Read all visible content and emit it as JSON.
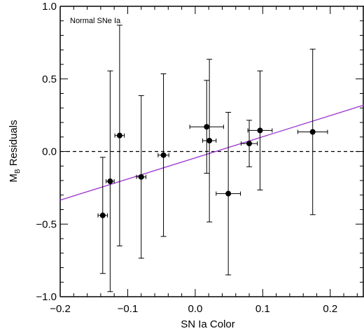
{
  "chart_data": {
    "type": "scatter",
    "title": "",
    "annotation": "Normal SNe Ia",
    "xlabel": "SN Ia Color",
    "ylabel_main": "M",
    "ylabel_sub": "B",
    "ylabel_rest": " Residuals",
    "xlim": [
      -0.2,
      0.25
    ],
    "ylim": [
      -1.0,
      1.0
    ],
    "x_ticks": [
      -0.2,
      -0.1,
      0.0,
      0.1,
      0.2
    ],
    "x_tick_labels": [
      "−0.2",
      "−0.1",
      "0.0",
      "0.1",
      "0.2"
    ],
    "y_ticks": [
      -1.0,
      -0.5,
      0.0,
      0.5,
      1.0
    ],
    "y_tick_labels": [
      "−1.0",
      "−0.5",
      "0.0",
      "0.5",
      "1.0"
    ],
    "grid": false,
    "zero_line": {
      "y": 0.0,
      "style": "dashed",
      "color": "#000000"
    },
    "fit_line": {
      "color": "#9b30d0",
      "points": [
        [
          -0.2,
          -0.335
        ],
        [
          0.25,
          0.32
        ]
      ]
    },
    "marker_color": "#000000",
    "points": [
      {
        "x": -0.137,
        "y": -0.44,
        "xerr": 0.007,
        "yerr": 0.4
      },
      {
        "x": -0.126,
        "y": -0.205,
        "xerr": 0.006,
        "yerr": 0.76
      },
      {
        "x": -0.112,
        "y": 0.11,
        "xerr": 0.007,
        "yerr": 0.76
      },
      {
        "x": -0.08,
        "y": -0.175,
        "xerr": 0.007,
        "yerr": 0.56
      },
      {
        "x": -0.047,
        "y": -0.025,
        "xerr": 0.008,
        "yerr": 0.56
      },
      {
        "x": 0.017,
        "y": 0.17,
        "xerr": 0.025,
        "yerr": 0.32
      },
      {
        "x": 0.021,
        "y": 0.075,
        "xerr": 0.01,
        "yerr": 0.56
      },
      {
        "x": 0.049,
        "y": -0.29,
        "xerr": 0.018,
        "yerr": 0.56
      },
      {
        "x": 0.08,
        "y": 0.055,
        "xerr": 0.012,
        "yerr": 0.16
      },
      {
        "x": 0.096,
        "y": 0.145,
        "xerr": 0.018,
        "yerr": 0.41
      },
      {
        "x": 0.174,
        "y": 0.135,
        "xerr": 0.022,
        "yerr": 0.57
      }
    ]
  }
}
